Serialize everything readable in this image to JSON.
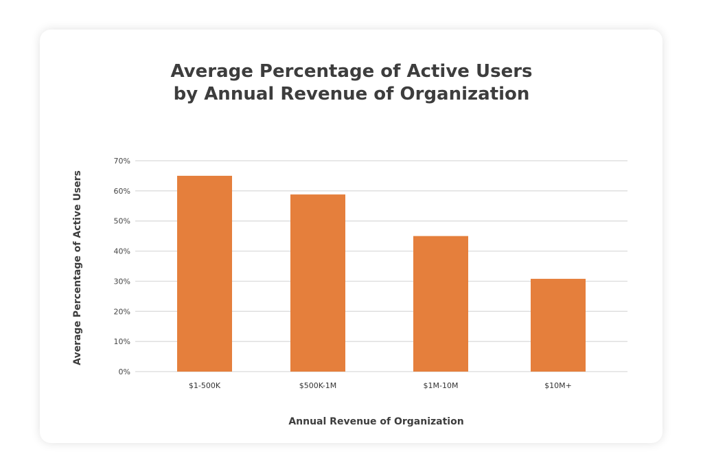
{
  "chart_data": {
    "type": "bar",
    "title_line1": "Average Percentage of Active Users",
    "title_line2": "by Annual Revenue of Organization",
    "xlabel": "Annual Revenue of Organization",
    "ylabel": "Average Percentage of Active Users",
    "categories": [
      "$1-500K",
      "$500K-1M",
      "$1M-10M",
      "$10M+"
    ],
    "values": [
      65,
      58.8,
      45,
      30.8
    ],
    "ylim": [
      0,
      70
    ],
    "yticks": [
      0,
      10,
      20,
      30,
      40,
      50,
      60,
      70
    ],
    "ytick_labels": [
      "0%",
      "10%",
      "20%",
      "30%",
      "40%",
      "50%",
      "60%",
      "70%"
    ],
    "grid": true,
    "bar_color": "#e57f3c",
    "grid_color": "#d9d9d9"
  }
}
